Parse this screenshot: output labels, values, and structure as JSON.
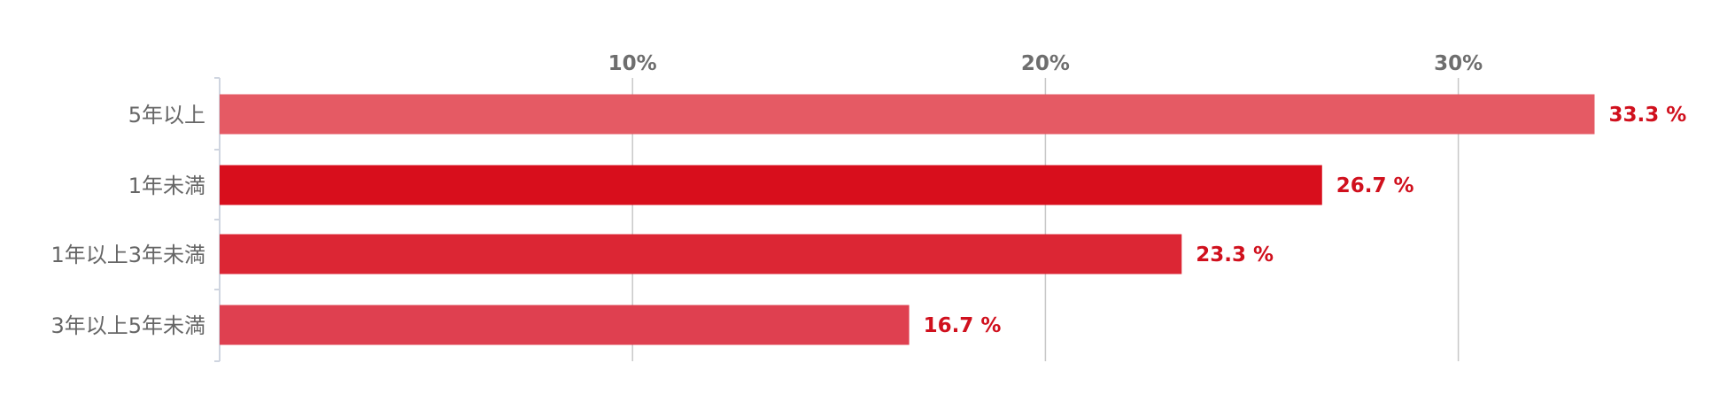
{
  "chart_data": {
    "type": "bar",
    "orientation": "horizontal",
    "categories": [
      "5年以上",
      "1年未満",
      "1年以上3年未満",
      "3年以上5年未満"
    ],
    "values": [
      33.3,
      26.7,
      23.3,
      16.7
    ],
    "value_labels": [
      "33.3 %",
      "26.7 %",
      "23.3 %",
      "16.7 %"
    ],
    "x_ticks": [
      10,
      20,
      30
    ],
    "x_tick_labels": [
      "10%",
      "20%",
      "30%"
    ],
    "xlim": [
      0,
      36.4
    ],
    "x_axis_position": "top",
    "grid": true,
    "legend": "none",
    "title": "",
    "xlabel": "",
    "ylabel": "",
    "bar_colors": [
      "#e55a64",
      "#d80e1c",
      "#dc2634",
      "#df4050"
    ],
    "value_label_color": "#d0101d",
    "grid_color": "#c8c8c8",
    "axis_color": "#cfd5e0"
  }
}
